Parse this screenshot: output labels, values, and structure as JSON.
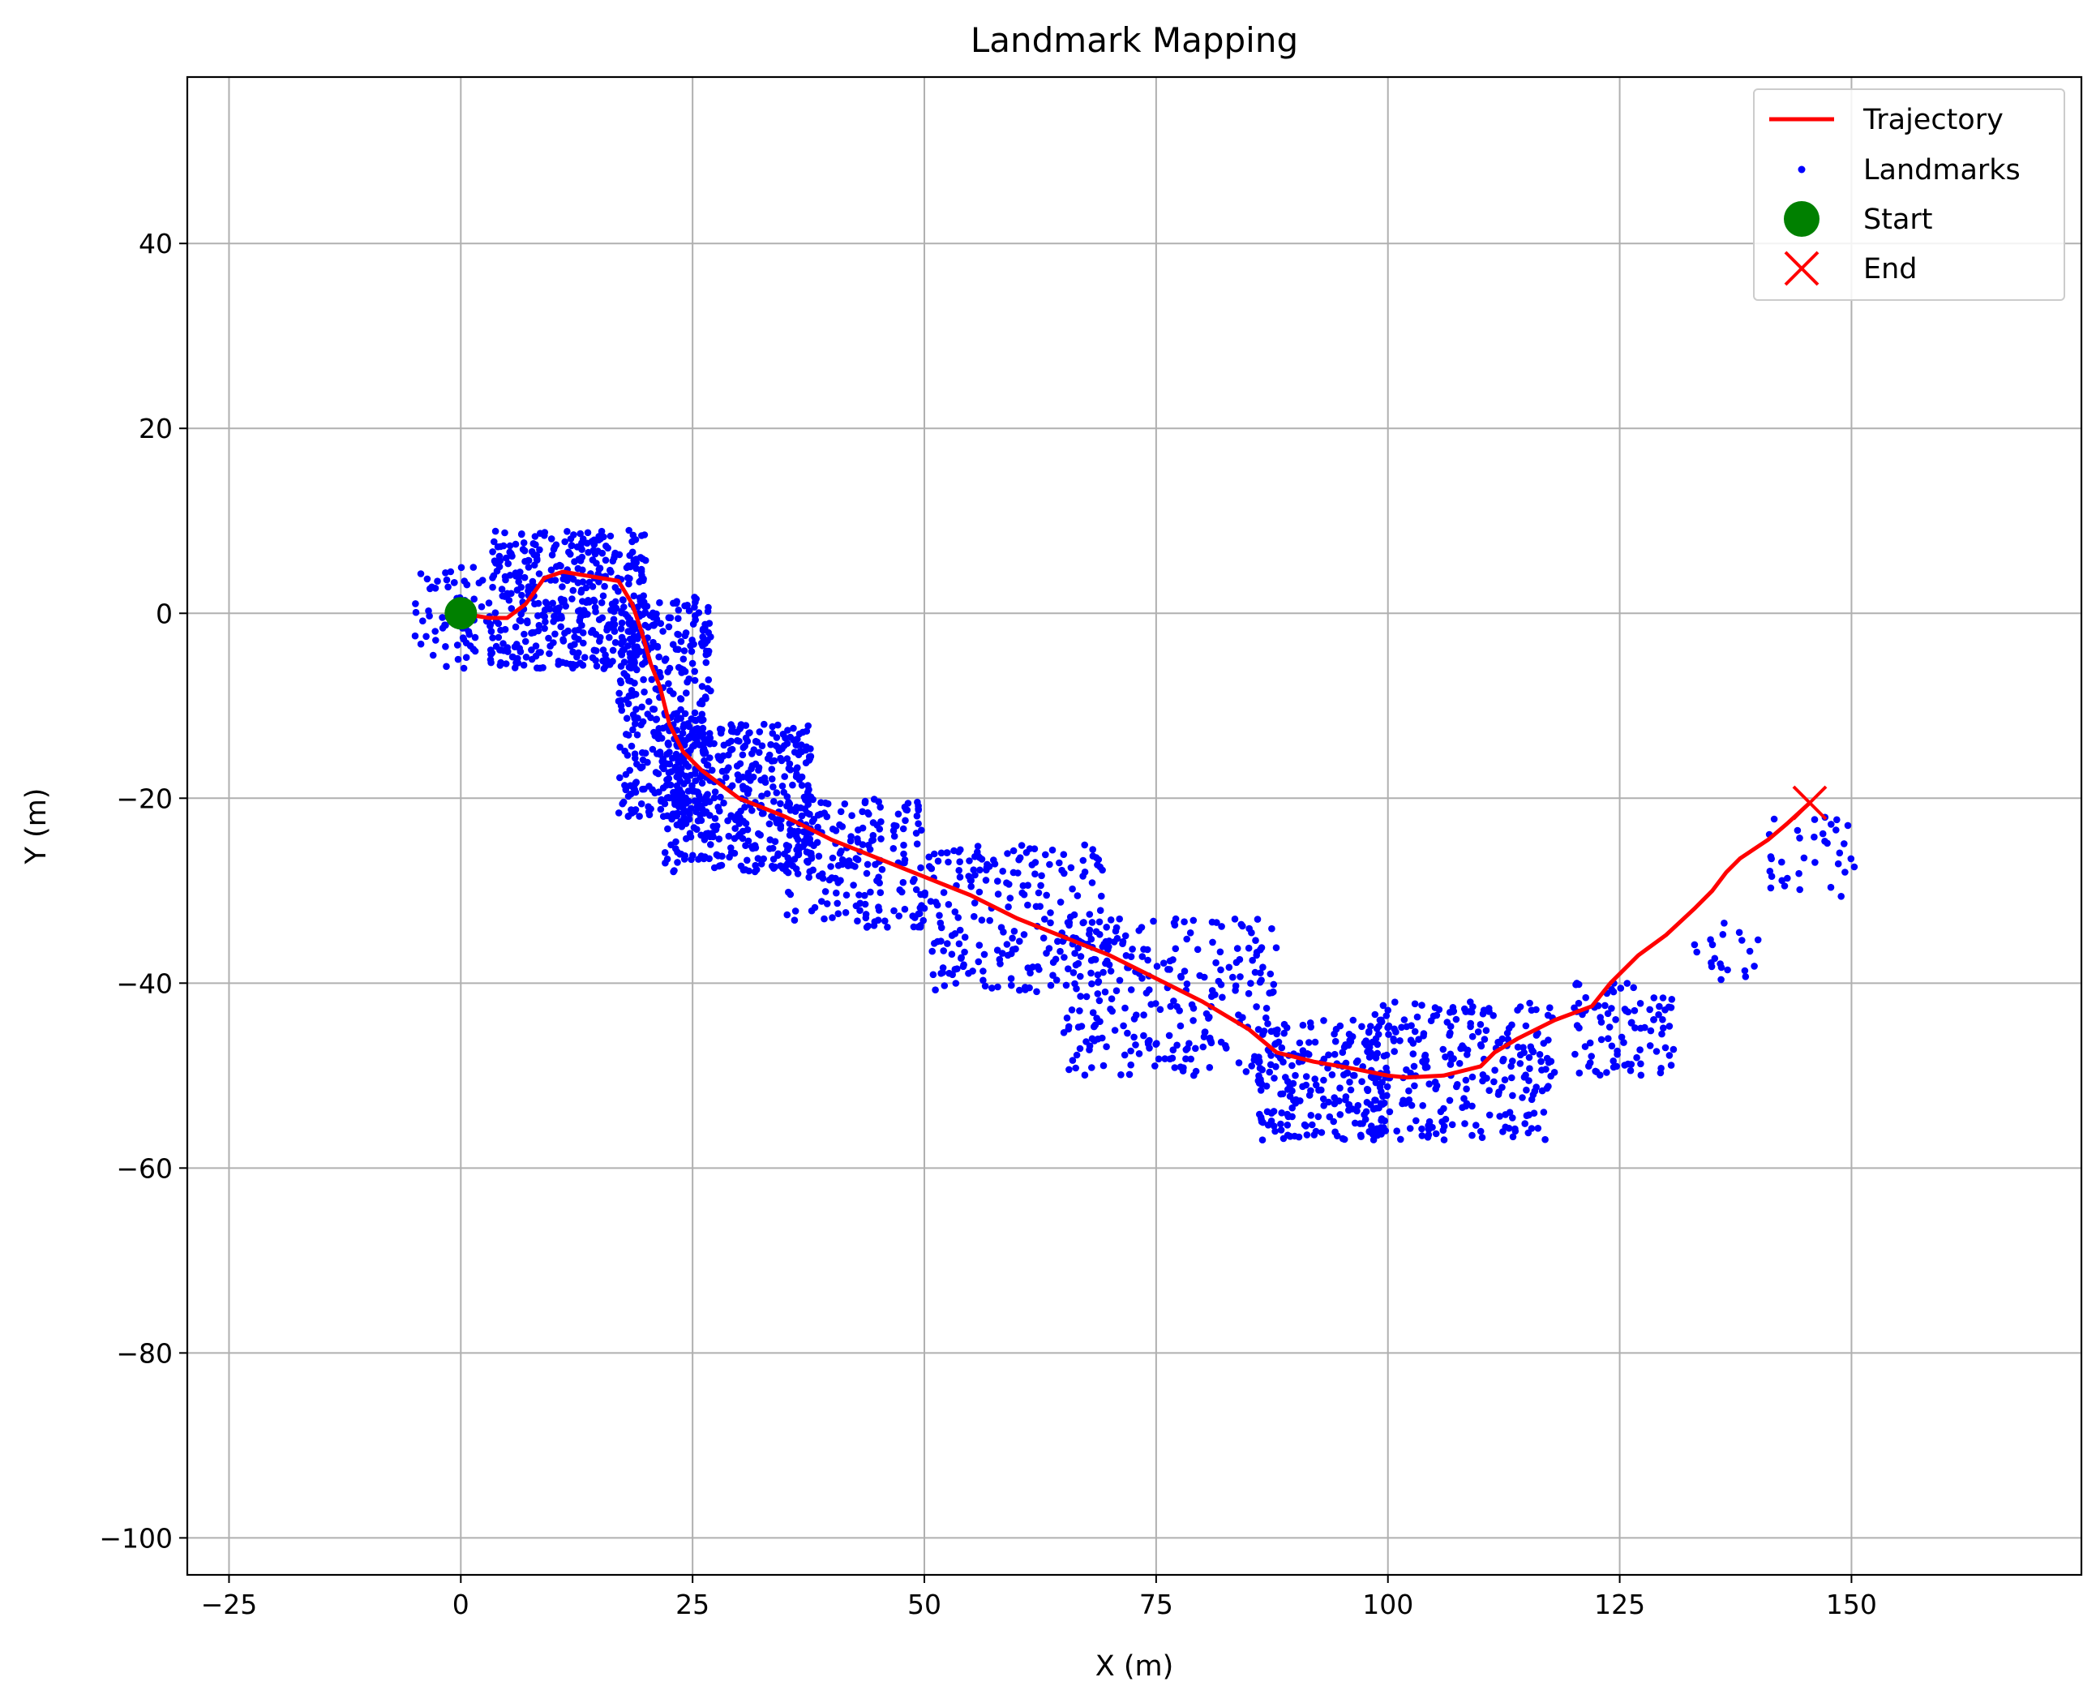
{
  "chart_data": {
    "type": "scatter",
    "title": "Landmark Mapping",
    "xlabel": "X (m)",
    "ylabel": "Y (m)",
    "xlim": [
      -29.5,
      174.8
    ],
    "ylim": [
      -104.0,
      58.0
    ],
    "xticks": [
      -25,
      0,
      25,
      50,
      75,
      100,
      125,
      150
    ],
    "yticks": [
      -100,
      -80,
      -60,
      -40,
      -20,
      0,
      20,
      40
    ],
    "xtick_labels": [
      "−25",
      "0",
      "25",
      "50",
      "75",
      "100",
      "125",
      "150"
    ],
    "ytick_labels": [
      "−100",
      "−80",
      "−60",
      "−40",
      "−20",
      "0",
      "20",
      "40"
    ],
    "grid": true,
    "legend_position": "top-right",
    "legend": [
      "Trajectory",
      "Landmarks",
      "Start",
      "End"
    ],
    "colors": {
      "trajectory": "#ff0000",
      "landmarks": "#0000ff",
      "start": "#008000",
      "end": "#ff0000",
      "grid": "#b0b0b0"
    },
    "series": [
      {
        "name": "Trajectory",
        "kind": "line",
        "x": [
          0,
          3,
          5,
          7,
          9,
          11,
          14,
          17,
          18.5,
          19.5,
          20.5,
          21.5,
          22.5,
          24,
          26,
          28,
          30,
          35,
          40,
          45,
          50,
          55,
          60,
          65,
          70,
          75,
          80,
          85,
          88,
          92,
          96,
          100,
          102,
          106,
          110,
          111.5,
          114,
          118,
          122,
          124,
          127,
          130,
          133,
          135,
          136.5,
          138,
          141,
          143,
          145.5
        ],
        "y": [
          0,
          -0.5,
          -0.5,
          1,
          3.8,
          4.5,
          4,
          3.5,
          1,
          -2,
          -5.5,
          -8,
          -12,
          -15,
          -17,
          -18.5,
          -20,
          -22,
          -24.5,
          -26.5,
          -28.5,
          -30.5,
          -33,
          -35,
          -37,
          -39.5,
          -42,
          -45,
          -47.5,
          -48.5,
          -49.2,
          -50,
          -50.2,
          -50,
          -49,
          -47.5,
          -46,
          -44,
          -42.5,
          -40,
          -37,
          -34.8,
          -32,
          -30,
          -28,
          -26.5,
          -24.5,
          -22.8,
          -20.5
        ]
      },
      {
        "name": "Landmarks",
        "kind": "scatter",
        "clusters": [
          {
            "x": [
              -5,
              3
            ],
            "y": [
              -6,
              5
            ],
            "n": 60
          },
          {
            "x": [
              3,
              20
            ],
            "y": [
              -6,
              9
            ],
            "n": 420
          },
          {
            "x": [
              17,
              27
            ],
            "y": [
              -22,
              2
            ],
            "n": 380
          },
          {
            "x": [
              22,
              38
            ],
            "y": [
              -28,
              -12
            ],
            "n": 420
          },
          {
            "x": [
              35,
              50
            ],
            "y": [
              -34,
              -20
            ],
            "n": 200
          },
          {
            "x": [
              50,
              70
            ],
            "y": [
              -41,
              -25
            ],
            "n": 220
          },
          {
            "x": [
              65,
              88
            ],
            "y": [
              -50,
              -33
            ],
            "n": 260
          },
          {
            "x": [
              86,
              100
            ],
            "y": [
              -57,
              -44
            ],
            "n": 220
          },
          {
            "x": [
              98,
              118
            ],
            "y": [
              -57,
              -42
            ],
            "n": 260
          },
          {
            "x": [
              120,
              131
            ],
            "y": [
              -50,
              -40
            ],
            "n": 90
          },
          {
            "x": [
              133,
              140
            ],
            "y": [
              -40,
              -33
            ],
            "n": 20
          },
          {
            "x": [
              141,
              151
            ],
            "y": [
              -31,
              -22
            ],
            "n": 35
          }
        ]
      }
    ],
    "start_point": {
      "label": "Start",
      "x": 0,
      "y": 0
    },
    "end_point": {
      "label": "End",
      "x": 145.5,
      "y": -20.5
    }
  }
}
